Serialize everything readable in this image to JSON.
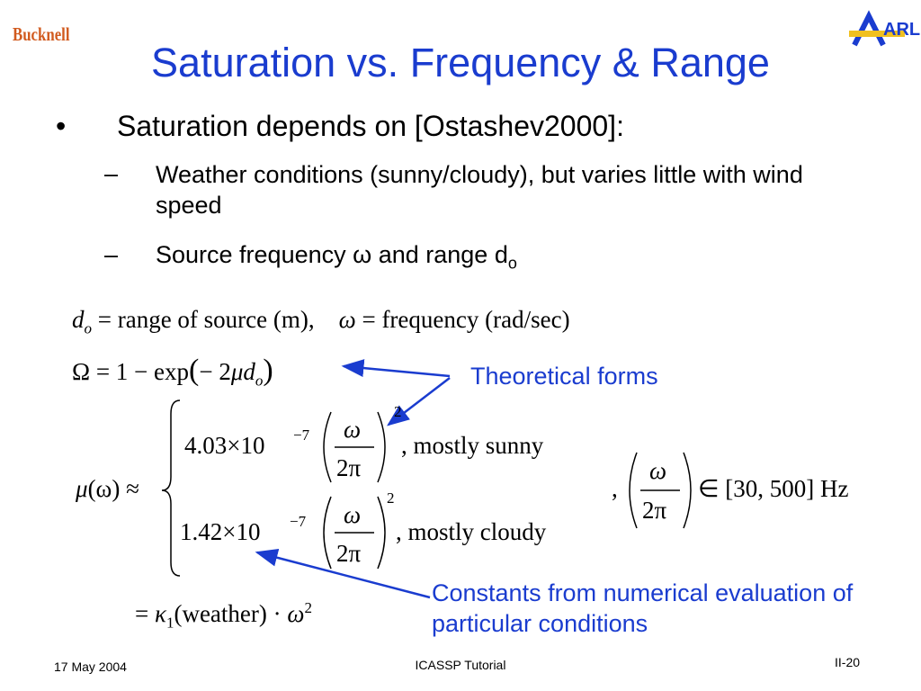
{
  "header": {
    "logo_left": "Bucknell",
    "logo_right": "ARL",
    "title": "Saturation vs. Frequency & Range"
  },
  "bullets": [
    {
      "text": "Saturation depends on [Ostashev2000]:",
      "subs": [
        {
          "text": "Weather conditions (sunny/cloudy), but varies little with wind speed"
        },
        {
          "text": "Source frequency ω and range d",
          "sub": "o"
        }
      ]
    }
  ],
  "equations": {
    "line1": [
      "d",
      "o",
      "= range of source (m),",
      "ω",
      "= frequency (rad/sec)"
    ],
    "line2": [
      "Ω = 1 − exp",
      "(",
      "− 2",
      "μd",
      "o",
      ")"
    ],
    "mu_lhs": [
      "μ",
      "(ω) ≈"
    ],
    "case_sunny": {
      "coef": "4.03×10",
      "exp": "−7",
      "num": "ω",
      "den": "2π",
      "power": "2",
      "label": ",    mostly sunny"
    },
    "case_cloudy": {
      "coef": "1.42×10",
      "exp": "−7",
      "num": "ω",
      "den": "2π",
      "power": "2",
      "label": ",    mostly cloudy"
    },
    "range": {
      "comma": ",",
      "num": "ω",
      "den": "2π",
      "set": "∈ [30, 500] Hz"
    },
    "line_last": [
      "= ",
      "κ",
      "1",
      "(weather) · ",
      "ω",
      "2"
    ]
  },
  "annotations": [
    "Theoretical forms",
    "Constants from numerical evaluation of particular conditions"
  ],
  "footer": {
    "date": "17 May 2004",
    "center": "ICASSP Tutorial",
    "page": "II-20"
  }
}
